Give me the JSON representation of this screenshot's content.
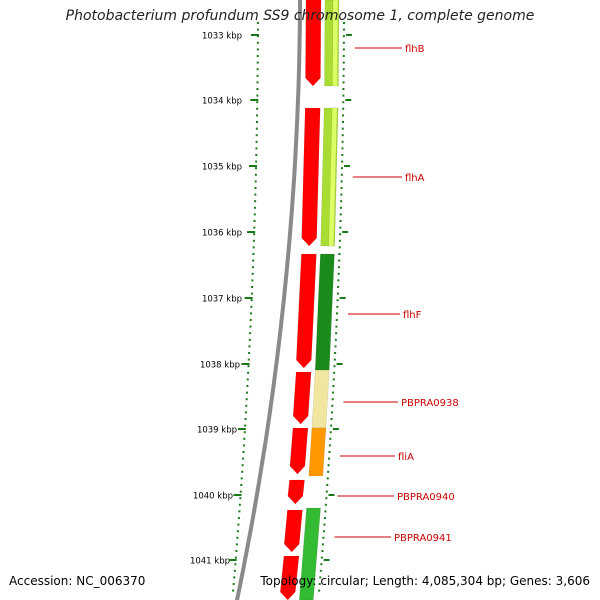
{
  "title": "Photobacterium profundum SS9 chromosome 1, complete genome",
  "accession": "Accession: NC_006370",
  "topology": "Topology: circular; Length: 4,085,304 bp; Genes: 3,606",
  "scale_labels": [
    "1033 kbp",
    "1034 kbp",
    "1035 kbp",
    "1036 kbp",
    "1037 kbp",
    "1038 kbp",
    "1039 kbp",
    "1040 kbp",
    "1041 kbp"
  ],
  "gene_labels": [
    "flhB",
    "flhA",
    "flhF",
    "PBPRA0938",
    "fliA",
    "PBPRA0940",
    "PBPRA0941"
  ],
  "colors": {
    "forward_strand": "#ff0000",
    "cds_dark_green": "#1a8a1a",
    "cds_green": "#33bb33",
    "cds_light_green": "#aadd33",
    "cds_pale_yellow": "#f0e6a0",
    "cds_orange": "#ff9900",
    "label_red": "#cc0000",
    "tick_green": "#1a7a1a",
    "backbone_gray": "#8a8a8a"
  }
}
